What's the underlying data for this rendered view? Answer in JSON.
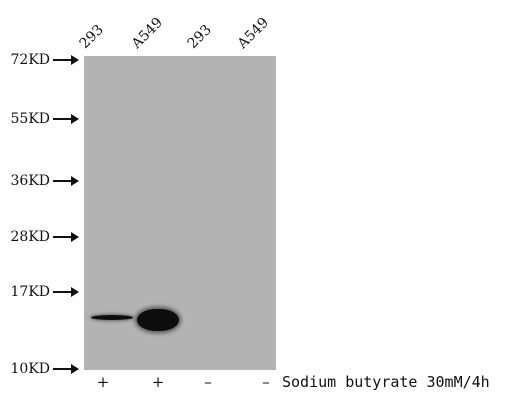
{
  "lanes": [
    {
      "label": "293",
      "treatment": "+"
    },
    {
      "label": "A549",
      "treatment": "+"
    },
    {
      "label": "293",
      "treatment": "–"
    },
    {
      "label": "A549",
      "treatment": "–"
    }
  ],
  "markers": [
    {
      "label": "72KD"
    },
    {
      "label": "55KD"
    },
    {
      "label": "36KD"
    },
    {
      "label": "28KD"
    },
    {
      "label": "17KD"
    },
    {
      "label": "10KD"
    }
  ],
  "treatment_caption": "Sodium butyrate 30mM/4h",
  "icons": {
    "marker_arrow": "arrow-right-icon"
  },
  "colors": {
    "membrane": "#b3b3b3",
    "band": "#0d0d0d"
  }
}
